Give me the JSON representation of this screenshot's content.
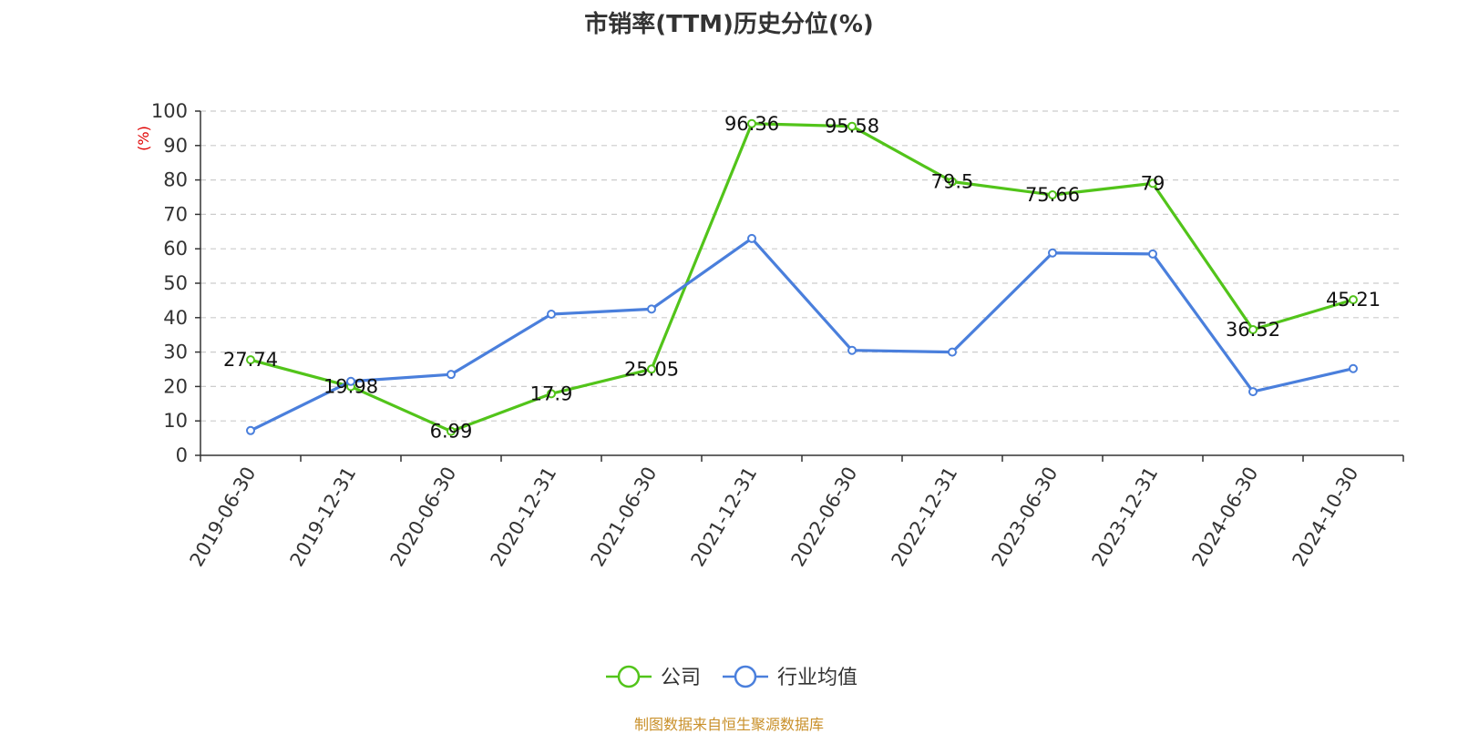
{
  "title": "市销率(TTM)历史分位(%)",
  "source": "制图数据来自恒生聚源数据库",
  "colors": {
    "company": "#52c41a",
    "industry": "#4a7fdc",
    "yunit": "#e00000"
  },
  "chart_data": {
    "type": "line",
    "title": "市销率(TTM)历史分位(%)",
    "ylabel": "(%)",
    "xlabel": "",
    "ylim": [
      0,
      100
    ],
    "yticks": [
      0,
      10,
      20,
      30,
      40,
      50,
      60,
      70,
      80,
      90,
      100
    ],
    "grid": true,
    "legend": "bottom-center",
    "categories": [
      "2019-06-30",
      "2019-12-31",
      "2020-06-30",
      "2020-12-31",
      "2021-06-30",
      "2021-12-31",
      "2022-06-30",
      "2022-12-31",
      "2023-06-30",
      "2023-12-31",
      "2024-06-30",
      "2024-10-30"
    ],
    "series": [
      {
        "name": "公司",
        "values": [
          27.74,
          19.98,
          6.99,
          17.9,
          25.05,
          96.36,
          95.58,
          79.5,
          75.66,
          79,
          36.52,
          45.21
        ],
        "labels": true
      },
      {
        "name": "行业均值",
        "values": [
          7.2,
          21.5,
          23.5,
          41,
          42.5,
          63,
          30.5,
          30,
          58.8,
          58.5,
          18.5,
          25.2
        ],
        "labels": false
      }
    ]
  }
}
